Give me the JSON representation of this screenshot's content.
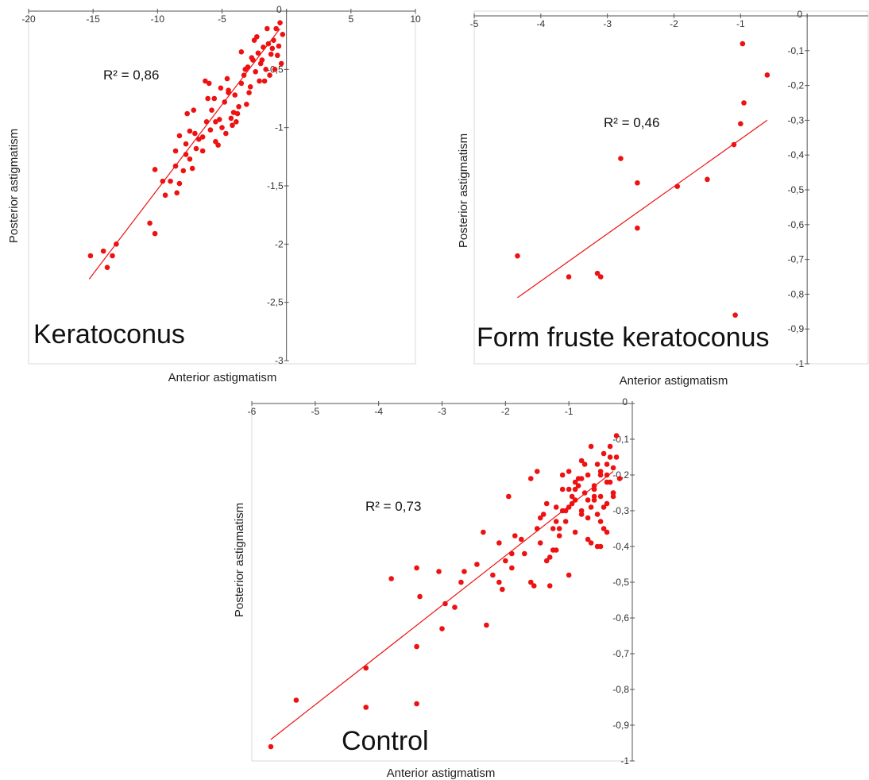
{
  "colors": {
    "point": "#ee1111",
    "line": "#ee1111",
    "axis": "#555555",
    "border": "#d9d9d9"
  },
  "chart_data": [
    {
      "type": "scatter",
      "panel_label": "Keratoconus",
      "r2_label": "R² = 0,86",
      "xlabel": "Anterior astigmatism",
      "ylabel": "Posterior astigmatism",
      "xlim": [
        -20,
        10
      ],
      "ylim": [
        -3,
        0
      ],
      "x_ticks": [
        -20,
        -15,
        -10,
        -5,
        0,
        5,
        10
      ],
      "x_tick_labels": [
        "-20",
        "-15",
        "-10",
        "-5",
        "0",
        "5",
        "10"
      ],
      "y_ticks": [
        0,
        -0.5,
        -1,
        -1.5,
        -2,
        -2.5,
        -3
      ],
      "y_tick_labels": [
        "0",
        "-0,5",
        "-1",
        "-1,5",
        "-2",
        "-2,5",
        "-3"
      ],
      "trendline": {
        "x": [
          -15.3,
          -0.5
        ],
        "y": [
          -2.3,
          -0.15
        ]
      },
      "points": {
        "x": [
          -15.2,
          -14.2,
          -13.5,
          -13.9,
          -13.2,
          -10.6,
          -10.2,
          -10.2,
          -9.6,
          -9.4,
          -9,
          -8.6,
          -8.5,
          -8.3,
          -8.6,
          -8.0,
          -8.3,
          -7.8,
          -7.8,
          -7.5,
          -7.3,
          -7.2,
          -7.0,
          -7.5,
          -7.7,
          -6.5,
          -6.8,
          -6.3,
          -6.0,
          -6.2,
          -5.8,
          -5.5,
          -5.2,
          -5.6,
          -5.0,
          -4.8,
          -4.7,
          -4.5,
          -4.3,
          -4.6,
          -4.0,
          -3.8,
          -3.5,
          -3.3,
          -3.1,
          -3.0,
          -2.8,
          -2.6,
          -2.4,
          -2.2,
          -2.0,
          -1.8,
          -1.6,
          -1.4,
          -1.2,
          -1.0,
          -0.8,
          -0.6,
          -0.5,
          -0.3,
          -1.5,
          -2.5,
          -3.5,
          -4.5,
          -5.5,
          -6.5,
          -2.1,
          -1.1,
          -0.9,
          -3.7,
          -4.2,
          -5.3,
          -6.1,
          -7.1,
          -2.9,
          -1.9,
          -0.7,
          -1.3,
          -2.3,
          -3.2,
          -4.1,
          -5.1,
          -5.9,
          -0.4,
          -1.7,
          -2.7,
          -3.9
        ],
        "y": [
          -2.1,
          -2.06,
          -2.1,
          -2.2,
          -2.0,
          -1.82,
          -1.36,
          -1.91,
          -1.46,
          -1.58,
          -1.46,
          -1.33,
          -1.56,
          -1.48,
          -1.2,
          -1.37,
          -1.07,
          -1.23,
          -1.14,
          -1.27,
          -1.35,
          -0.85,
          -1.18,
          -1.03,
          -0.88,
          -1.2,
          -1.1,
          -0.6,
          -0.62,
          -0.95,
          -0.85,
          -1.12,
          -0.93,
          -0.75,
          -1.0,
          -0.78,
          -1.05,
          -0.68,
          -0.92,
          -0.58,
          -0.72,
          -0.88,
          -0.62,
          -0.55,
          -0.8,
          -0.48,
          -0.65,
          -0.42,
          -0.52,
          -0.36,
          -0.45,
          -0.31,
          -0.5,
          -0.28,
          -0.37,
          -0.25,
          -0.15,
          -0.3,
          -0.1,
          -0.2,
          -0.15,
          -0.25,
          -0.35,
          -0.7,
          -0.95,
          -1.08,
          -0.6,
          -0.32,
          -0.5,
          -0.82,
          -0.98,
          -1.15,
          -0.75,
          -1.05,
          -0.7,
          -0.42,
          -0.38,
          -0.55,
          -0.22,
          -0.5,
          -0.87,
          -0.66,
          -1.02,
          -0.45,
          -0.6,
          -0.4,
          -0.95
        ]
      }
    },
    {
      "type": "scatter",
      "panel_label": "Form fruste keratoconus",
      "r2_label": "R² = 0,46",
      "xlabel": "Anterior astigmatism",
      "ylabel": "Posterior astigmatism",
      "xlim": [
        -5,
        1
      ],
      "ylim": [
        -1,
        0
      ],
      "x_ticks": [
        -5,
        -4,
        -3,
        -2,
        -1,
        0
      ],
      "x_tick_labels": [
        "-5",
        "-4",
        "-3",
        "-2",
        "-1",
        "0"
      ],
      "y_ticks": [
        0,
        -0.1,
        -0.2,
        -0.3,
        -0.4,
        -0.5,
        -0.6,
        -0.7,
        -0.8,
        -0.9,
        -1
      ],
      "y_tick_labels": [
        "0",
        "-0,1",
        "-0,2",
        "-0,3",
        "-0,4",
        "-0,5",
        "-0,6",
        "-0,7",
        "-0,8",
        "-0,9",
        "-1"
      ],
      "trendline": {
        "x": [
          -4.35,
          -0.6
        ],
        "y": [
          -0.81,
          -0.3
        ]
      },
      "points": {
        "x": [
          -4.35,
          -3.58,
          -3.15,
          -3.1,
          -2.55,
          -2.55,
          -1.95,
          -1.5,
          -1.1,
          -1.0,
          -0.95,
          -0.97,
          -0.6,
          -1.08,
          -2.8
        ],
        "y": [
          -0.69,
          -0.75,
          -0.74,
          -0.75,
          -0.61,
          -0.48,
          -0.49,
          -0.47,
          -0.37,
          -0.31,
          -0.25,
          -0.08,
          -0.17,
          -0.86,
          -0.41
        ]
      }
    },
    {
      "type": "scatter",
      "panel_label": "Control",
      "r2_label": "R² = 0,73",
      "xlabel": "Anterior astigmatism",
      "ylabel": "Posterior astigmatism",
      "xlim": [
        -6,
        0
      ],
      "ylim": [
        -1,
        0
      ],
      "x_ticks": [
        -6,
        -5,
        -4,
        -3,
        -2,
        -1,
        0
      ],
      "x_tick_labels": [
        "-6",
        "-5",
        "-4",
        "-3",
        "-2",
        "-1",
        "0"
      ],
      "y_ticks": [
        0,
        -0.1,
        -0.2,
        -0.3,
        -0.4,
        -0.5,
        -0.6,
        -0.7,
        -0.8,
        -0.9,
        -1
      ],
      "y_tick_labels": [
        "0",
        "-0,1",
        "-0,2",
        "-0,3",
        "-0,4",
        "-0,5",
        "-0,6",
        "-0,7",
        "-0,8",
        "-0,9",
        "-1"
      ],
      "trendline": {
        "x": [
          -5.7,
          -0.3
        ],
        "y": [
          -0.94,
          -0.19
        ]
      },
      "points": {
        "x": [
          -5.7,
          -5.3,
          -4.2,
          -4.2,
          -3.8,
          -3.4,
          -3.4,
          -3.4,
          -3.35,
          -3.05,
          -3.0,
          -2.95,
          -2.8,
          -2.7,
          -2.65,
          -2.45,
          -2.35,
          -2.3,
          -2.2,
          -2.1,
          -2.05,
          -1.95,
          -1.9,
          -1.85,
          -1.75,
          -1.7,
          -1.6,
          -1.55,
          -1.5,
          -1.45,
          -1.4,
          -1.35,
          -1.3,
          -1.25,
          -1.2,
          -1.15,
          -1.1,
          -1.05,
          -1.0,
          -0.95,
          -0.9,
          -0.85,
          -0.8,
          -0.75,
          -0.7,
          -0.65,
          -0.6,
          -0.55,
          -0.5,
          -0.45,
          -0.4,
          -0.35,
          -0.3,
          -0.25,
          -0.2,
          -1.3,
          -1.2,
          -1.0,
          -0.9,
          -0.8,
          -0.7,
          -0.6,
          -0.5,
          -0.4,
          -0.3,
          -1.1,
          -1.0,
          -0.9,
          -0.8,
          -0.7,
          -0.6,
          -0.5,
          -0.4,
          -0.55,
          -0.45,
          -0.35,
          -0.65,
          -0.75,
          -0.85,
          -0.95,
          -1.05,
          -1.15,
          -1.25,
          -1.35,
          -1.45,
          -0.25,
          -0.35,
          -0.45,
          -0.55,
          -0.65,
          -0.3,
          -0.4,
          -0.5,
          -0.6,
          -0.7,
          -0.8,
          -0.9,
          -1.0,
          -1.1,
          -1.2,
          -1.5,
          -1.6,
          -1.9,
          -2.0,
          -2.1,
          -0.5,
          -0.4,
          -0.3
        ],
        "y": [
          -0.96,
          -0.83,
          -0.74,
          -0.85,
          -0.49,
          -0.68,
          -0.84,
          -0.46,
          -0.54,
          -0.47,
          -0.63,
          -0.56,
          -0.57,
          -0.5,
          -0.47,
          -0.45,
          -0.36,
          -0.62,
          -0.48,
          -0.5,
          -0.52,
          -0.26,
          -0.46,
          -0.37,
          -0.38,
          -0.42,
          -0.21,
          -0.51,
          -0.35,
          -0.39,
          -0.31,
          -0.44,
          -0.43,
          -0.35,
          -0.29,
          -0.37,
          -0.3,
          -0.33,
          -0.24,
          -0.28,
          -0.27,
          -0.21,
          -0.3,
          -0.25,
          -0.2,
          -0.29,
          -0.23,
          -0.17,
          -0.26,
          -0.14,
          -0.2,
          -0.22,
          -0.18,
          -0.15,
          -0.21,
          -0.51,
          -0.41,
          -0.48,
          -0.36,
          -0.31,
          -0.38,
          -0.27,
          -0.33,
          -0.22,
          -0.25,
          -0.2,
          -0.19,
          -0.24,
          -0.21,
          -0.32,
          -0.26,
          -0.19,
          -0.28,
          -0.4,
          -0.35,
          -0.12,
          -0.12,
          -0.17,
          -0.23,
          -0.26,
          -0.3,
          -0.35,
          -0.41,
          -0.28,
          -0.32,
          -0.09,
          -0.15,
          -0.29,
          -0.31,
          -0.39,
          -0.25,
          -0.17,
          -0.2,
          -0.24,
          -0.27,
          -0.16,
          -0.22,
          -0.29,
          -0.24,
          -0.33,
          -0.19,
          -0.5,
          -0.42,
          -0.44,
          -0.39,
          -0.4,
          -0.36,
          -0.26
        ]
      }
    }
  ]
}
